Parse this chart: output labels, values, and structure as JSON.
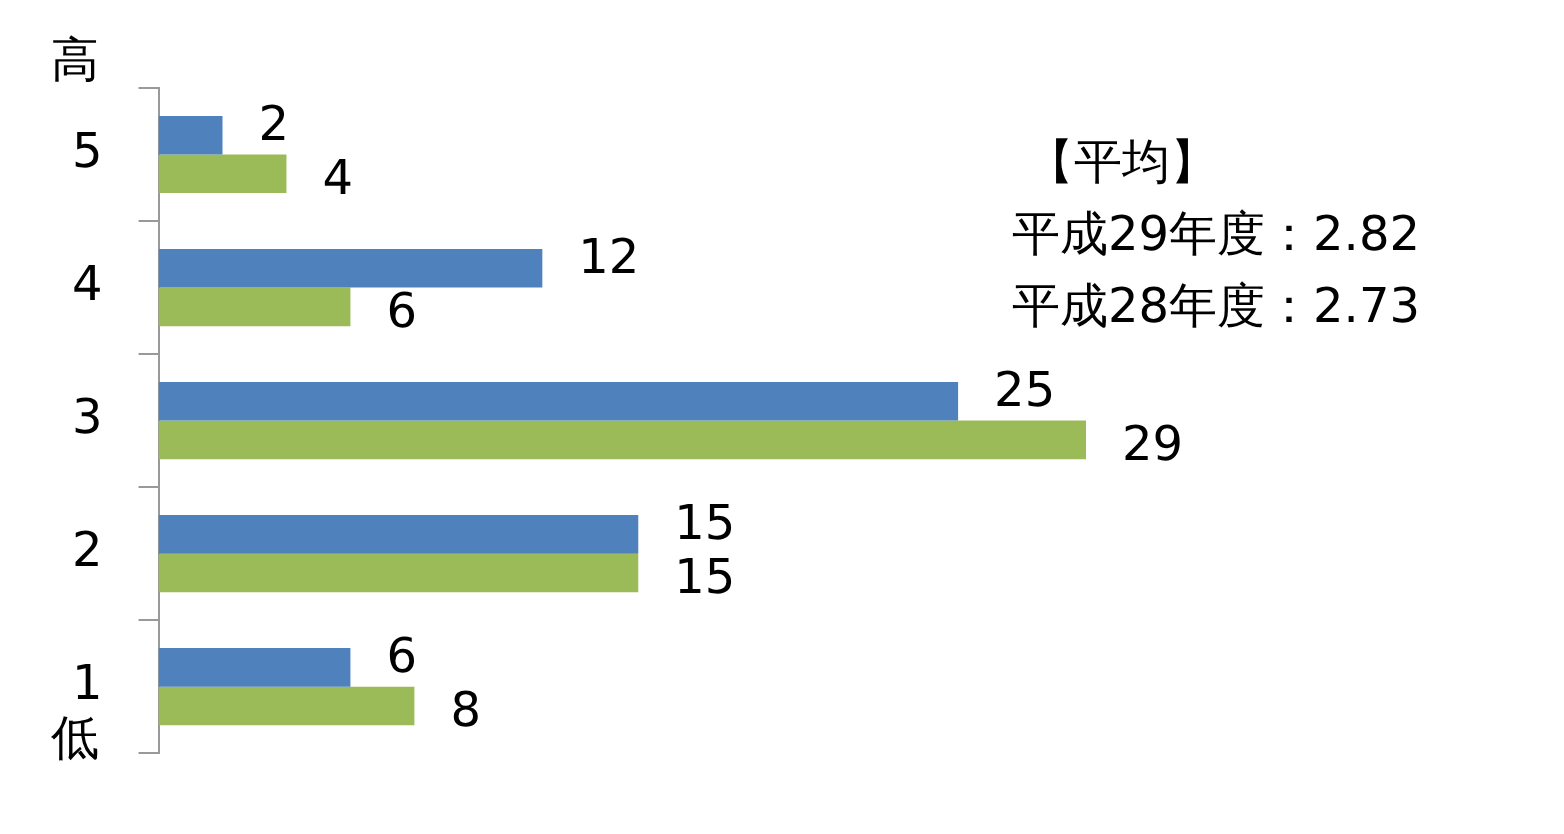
{
  "chart_data": {
    "type": "bar",
    "orientation": "horizontal",
    "categories": [
      "5",
      "4",
      "3",
      "2",
      "1"
    ],
    "series": [
      {
        "color": "#4f81bd",
        "values": [
          2,
          12,
          25,
          15,
          6
        ]
      },
      {
        "color": "#9bbb59",
        "values": [
          4,
          6,
          29,
          15,
          8
        ]
      }
    ],
    "data_labels": true,
    "grid": false,
    "legend": false,
    "tick_labels": "y",
    "annotations": [
      "高",
      "低",
      "【平均】",
      "平成29年度：2.82",
      "平成28年度：2.73"
    ]
  }
}
